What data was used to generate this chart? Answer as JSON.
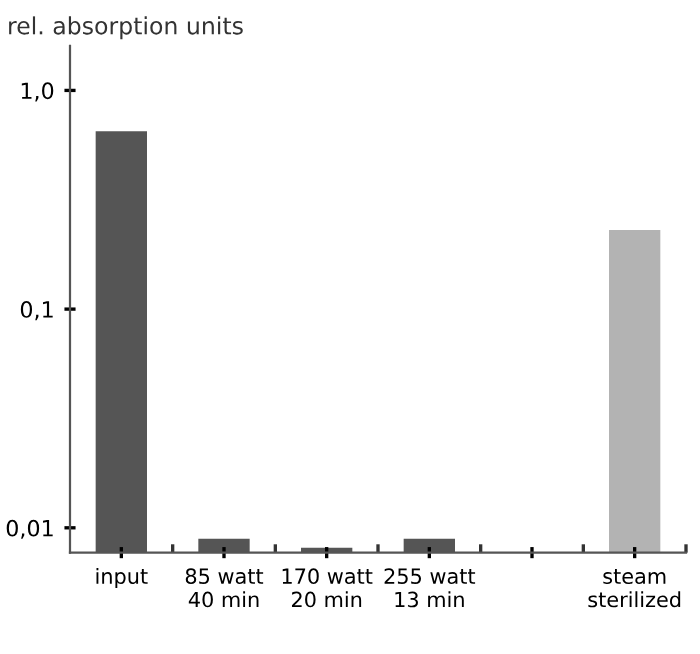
{
  "chart_data": {
    "type": "bar",
    "ylabel": "rel. absorption units",
    "categories": [
      "input",
      "85 watt\n40 min",
      "170 watt\n20 min",
      "255 watt\n13 min",
      null,
      "steam\nsterilized"
    ],
    "values": [
      0.65,
      0.0089,
      0.0081,
      0.0089,
      null,
      0.23
    ],
    "colors": [
      "#555555",
      "#555555",
      "#555555",
      "#555555",
      "#555555",
      "#b3b3b3"
    ],
    "log": "y",
    "ylim": [
      0.0077,
      1.6
    ],
    "yticks": [
      {
        "value": 1.0,
        "label": "1,0"
      },
      {
        "value": 0.1,
        "label": "0,1"
      },
      {
        "value": 0.01,
        "label": "0,01"
      }
    ],
    "grid": false,
    "legend": false
  }
}
